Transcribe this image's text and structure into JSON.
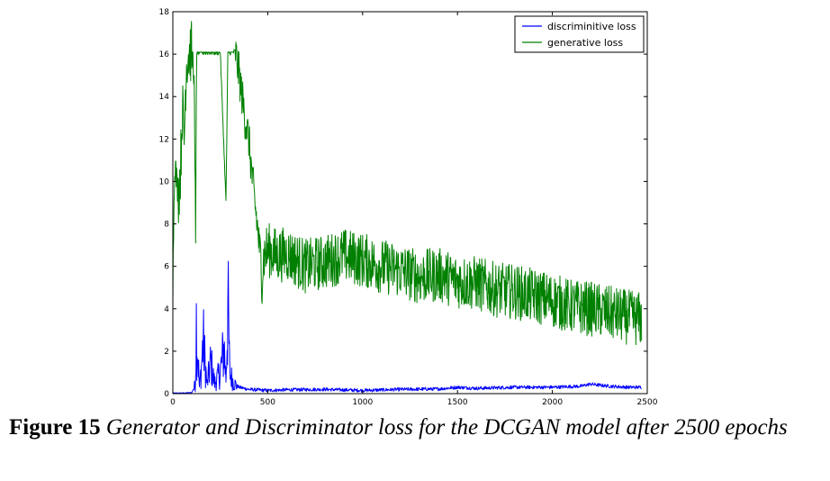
{
  "caption": {
    "label": "Figure 15",
    "text": "Generator and Discriminator loss for the DCGAN model after 2500 epochs"
  },
  "chart_data": {
    "type": "line",
    "title": "",
    "xlabel": "",
    "ylabel": "",
    "xlim": [
      0,
      2500
    ],
    "ylim": [
      0,
      18
    ],
    "xticks": [
      0,
      500,
      1000,
      1500,
      2000,
      2500
    ],
    "yticks": [
      0,
      2,
      4,
      6,
      8,
      10,
      12,
      14,
      16,
      18
    ],
    "grid": false,
    "legend_position": "top-right",
    "series": [
      {
        "name": "discriminitive loss",
        "color": "#0000ff",
        "x": [
          0,
          60,
          100,
          118,
          124,
          140,
          150,
          160,
          180,
          200,
          220,
          250,
          270,
          280,
          290,
          300,
          320,
          350,
          400,
          500,
          600,
          800,
          1000,
          1200,
          1400,
          1500,
          1600,
          1800,
          2000,
          2150,
          2200,
          2300,
          2400,
          2470
        ],
        "y": [
          0.02,
          0.03,
          0.05,
          0.4,
          3.35,
          0.3,
          1.2,
          2.5,
          0.4,
          1.5,
          0.5,
          1.0,
          2.2,
          0.7,
          4.2,
          1.0,
          0.5,
          0.3,
          0.2,
          0.15,
          0.18,
          0.2,
          0.15,
          0.2,
          0.22,
          0.3,
          0.25,
          0.3,
          0.3,
          0.35,
          0.45,
          0.35,
          0.3,
          0.3
        ]
      },
      {
        "name": "generative loss",
        "color": "#008000",
        "x": [
          0,
          5,
          10,
          20,
          30,
          40,
          50,
          60,
          70,
          80,
          90,
          100,
          110,
          120,
          125,
          130,
          150,
          200,
          250,
          280,
          290,
          300,
          330,
          350,
          380,
          400,
          420,
          450,
          470,
          480,
          500,
          550,
          600,
          700,
          800,
          900,
          1000,
          1100,
          1200,
          1300,
          1400,
          1500,
          1600,
          1700,
          1800,
          1900,
          2000,
          2100,
          2200,
          2300,
          2400,
          2470
        ],
        "y": [
          4.8,
          8.4,
          11.0,
          10.0,
          9.5,
          10.5,
          13.5,
          12.0,
          15.5,
          16.0,
          16.1,
          16.1,
          16.0,
          7.0,
          16.1,
          16.1,
          16.1,
          16.1,
          16.1,
          9.0,
          16.1,
          16.1,
          16.1,
          15.0,
          13.0,
          12.0,
          10.0,
          7.5,
          5.5,
          6.5,
          6.8,
          6.5,
          6.6,
          6.0,
          6.2,
          6.5,
          6.3,
          6.0,
          5.8,
          5.5,
          5.6,
          5.3,
          5.2,
          4.9,
          4.8,
          4.6,
          4.4,
          4.1,
          4.0,
          3.8,
          3.6,
          3.5
        ]
      }
    ]
  }
}
